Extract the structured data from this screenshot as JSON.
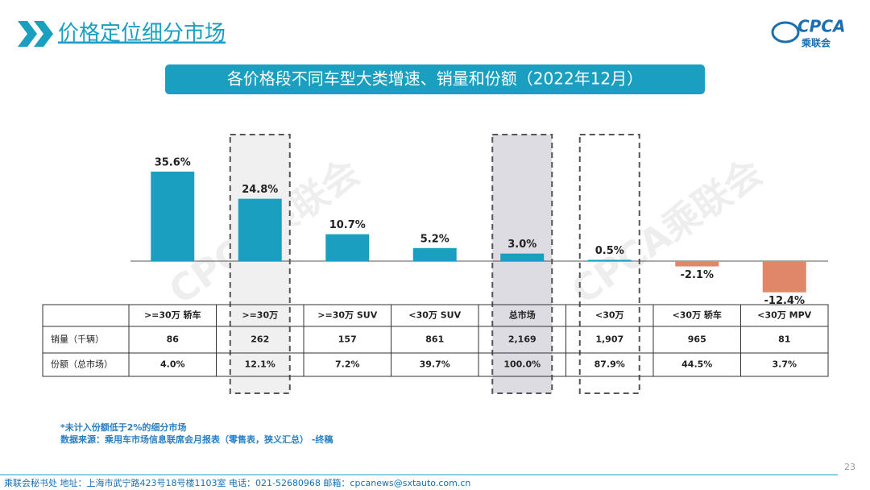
{
  "header": {
    "title": "价格定位细分市场",
    "logo": "CPCA",
    "logo_sub": "乘联会"
  },
  "watermark": "CPCA乘联会",
  "chart_data": {
    "type": "bar",
    "title": "各价格段不同车型大类增速、销量和份额（2022年12月）",
    "categories": [
      ">=30万 轿车",
      ">=30万",
      ">=30万 SUV",
      "<30万 SUV",
      "总市场",
      "<30万",
      "<30万 轿车",
      "<30万 MPV"
    ],
    "values": [
      35.6,
      24.8,
      10.7,
      5.2,
      3.0,
      0.5,
      -2.1,
      -12.4
    ],
    "value_labels": [
      "35.6%",
      "24.8%",
      "10.7%",
      "5.2%",
      "3.0%",
      "0.5%",
      "-2.1%",
      "-12.4%"
    ],
    "colors": [
      "#1a9fc0",
      "#1a9fc0",
      "#1a9fc0",
      "#1a9fc0",
      "#1a9fc0",
      "#1a9fc0",
      "#e0876a",
      "#e0876a"
    ]
  },
  "table": {
    "rows": [
      [
        "销量（千辆）",
        "86",
        "262",
        "157",
        "861",
        "2,169",
        "1,907",
        "965",
        "81"
      ],
      [
        "份额（总市场）",
        "4.0%",
        "12.1%",
        "7.2%",
        "39.7%",
        "100.0%",
        "87.9%",
        "44.5%",
        "3.7%"
      ]
    ]
  },
  "notes": [
    "*未计入份额低于2%的细分市场",
    "数据来源：乘用车市场信息联席会月报表（零售表，狭义汇总） -终稿"
  ],
  "footer": "乘联会秘书处   地址：上海市武宁路423号18号楼1103室  电话：021-52680968   邮箱：cpcanews@sxtauto.com.cn",
  "page_number": "23"
}
